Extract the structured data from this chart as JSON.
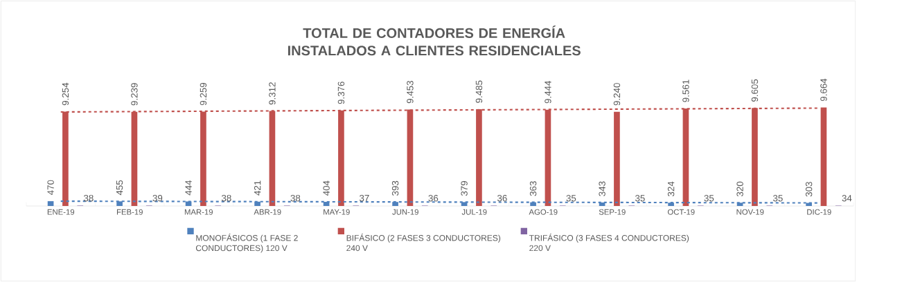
{
  "chart_data": {
    "type": "bar",
    "title": "TOTAL DE CONTADORES DE ENERGÍA INSTALADOS A CLIENTES RESIDENCIALES",
    "categories": [
      "ENE-19",
      "FEB-19",
      "MAR-19",
      "ABR-19",
      "MAY-19",
      "JUN-19",
      "JUL-19",
      "AGO-19",
      "SEP-19",
      "OCT-19",
      "NOV-19",
      "DIC-19"
    ],
    "series": [
      {
        "name": "MONOFÁSICOS (1 FASE 2 CONDUCTORES) 120 V",
        "color": "#4f81bd",
        "values": [
          470,
          455,
          444,
          421,
          404,
          393,
          379,
          363,
          343,
          324,
          320,
          303
        ],
        "value_labels": [
          "470",
          "455",
          "444",
          "421",
          "404",
          "393",
          "379",
          "363",
          "343",
          "324",
          "320",
          "303"
        ]
      },
      {
        "name": "BIFÁSICO (2 FASES 3 CONDUCTORES) 240 V",
        "color": "#c0504d",
        "values": [
          9254,
          9239,
          9259,
          9312,
          9376,
          9453,
          9485,
          9444,
          9240,
          9561,
          9605,
          9664
        ],
        "value_labels": [
          "9.254",
          "9.239",
          "9.259",
          "9.312",
          "9.376",
          "9.453",
          "9.485",
          "9.444",
          "9.240",
          "9.561",
          "9.605",
          "9.664"
        ]
      },
      {
        "name": "TRIFÁSICO (3 FASES 4 CONDUCTORES) 220 V",
        "color": "#8064a2",
        "values": [
          38,
          39,
          38,
          38,
          37,
          36,
          36,
          35,
          35,
          35,
          35,
          34
        ],
        "value_labels": [
          "38",
          "39",
          "38",
          "38",
          "37",
          "36",
          "36",
          "35",
          "35",
          "35",
          "35",
          "34"
        ]
      },
      {
        "type": "line",
        "line_style": "dashed",
        "color": "#4f81bd",
        "values": [
          470,
          455,
          439,
          424,
          408,
          393,
          377,
          362,
          346,
          331,
          315,
          300
        ]
      },
      {
        "type": "line",
        "line_style": "dashed",
        "color": "#c0504d",
        "values": [
          9220,
          9254,
          9288,
          9323,
          9357,
          9391,
          9425,
          9459,
          9494,
          9528,
          9562,
          9596
        ]
      }
    ],
    "tick_labels": "x",
    "legend": "bottom",
    "grid": false
  }
}
